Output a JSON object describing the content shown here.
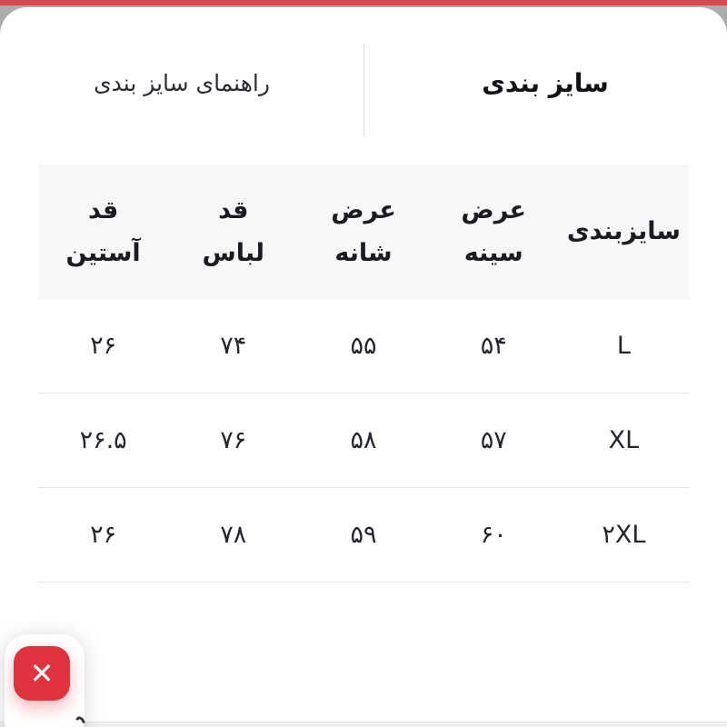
{
  "tabs": {
    "active_label": "سایز بندی",
    "inactive_label": "راهنمای سایز بندی"
  },
  "size_table": {
    "columns": [
      {
        "key": "size",
        "label": "سایزبندی"
      },
      {
        "key": "chest",
        "label": "عرض\nسینه"
      },
      {
        "key": "shoulder",
        "label": "عرض\nشانه"
      },
      {
        "key": "length",
        "label": "قد\nلباس"
      },
      {
        "key": "sleeve",
        "label": "قد\nآستین"
      }
    ],
    "rows": [
      {
        "size": "L",
        "chest": "۵۴",
        "shoulder": "۵۵",
        "length": "۷۴",
        "sleeve": "۲۶"
      },
      {
        "size": "XL",
        "chest": "۵۷",
        "shoulder": "۵۸",
        "length": "۷۶",
        "sleeve": "۲۶.۵"
      },
      {
        "size": "۲XL",
        "chest": "۶۰",
        "shoulder": "۵۹",
        "length": "۷۸",
        "sleeve": "۲۶"
      }
    ]
  },
  "close_button": {
    "icon": "close-icon",
    "glyph": "✕"
  },
  "colors": {
    "accent_red": "#e0333e",
    "top_strip_red": "#d9474f",
    "header_bg": "#f7f7f7",
    "divider": "#e7e7e9",
    "backdrop_gray": "#acacac"
  }
}
